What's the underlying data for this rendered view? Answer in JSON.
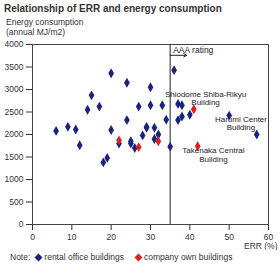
{
  "chart_data": {
    "type": "scatter",
    "title": "Relationship of ERR and energy consumption",
    "y_label": "Energy consumption\n(annual MJ/m2)",
    "x_label": "ERR (%)",
    "xlim": [
      0,
      60
    ],
    "xticks": [
      0,
      10,
      20,
      30,
      40,
      50,
      60
    ],
    "ylim": [
      0,
      4000
    ],
    "yticks": [
      0,
      500,
      1000,
      1500,
      2000,
      2500,
      3000,
      3500,
      4000
    ],
    "grid": false,
    "legend": "bottom",
    "note": "Note:",
    "marker": "diamond",
    "series": [
      {
        "name": "rental office buildings",
        "color": "#1a237e",
        "x": [
          6,
          9,
          11,
          12,
          14,
          15,
          17,
          18,
          19,
          20,
          20,
          22,
          24,
          24,
          25,
          25,
          26,
          27,
          28,
          29,
          29,
          30,
          30,
          31,
          31,
          32,
          33,
          34,
          35,
          36,
          37,
          37,
          38,
          38,
          40,
          50,
          57
        ],
        "values": [
          2080,
          2170,
          2110,
          1760,
          2550,
          2870,
          2620,
          1380,
          1480,
          3360,
          2100,
          1800,
          3150,
          2320,
          1850,
          1800,
          1700,
          2620,
          1980,
          2170,
          2150,
          2650,
          3050,
          1900,
          2150,
          2000,
          2650,
          2330,
          1730,
          3430,
          2320,
          2680,
          2650,
          2400,
          2440,
          2420,
          2000
        ]
      },
      {
        "name": "company own buildings",
        "color": "#e02020",
        "x": [
          22,
          27,
          32,
          41,
          42
        ],
        "values": [
          1870,
          1720,
          1850,
          2560,
          1740
        ]
      }
    ],
    "reference_lines": [
      {
        "x": 35,
        "label": "AAA rating"
      }
    ],
    "annotations": [
      {
        "text": "Shiodome Shiba-Rikyu\nBuilding",
        "x": 44,
        "y": 2800
      },
      {
        "text": "Takenaka Central\nBuilding",
        "x": 46,
        "y": 1550
      },
      {
        "text": "Harumi Center\nBuilding",
        "x": 53,
        "y": 2250
      }
    ]
  }
}
